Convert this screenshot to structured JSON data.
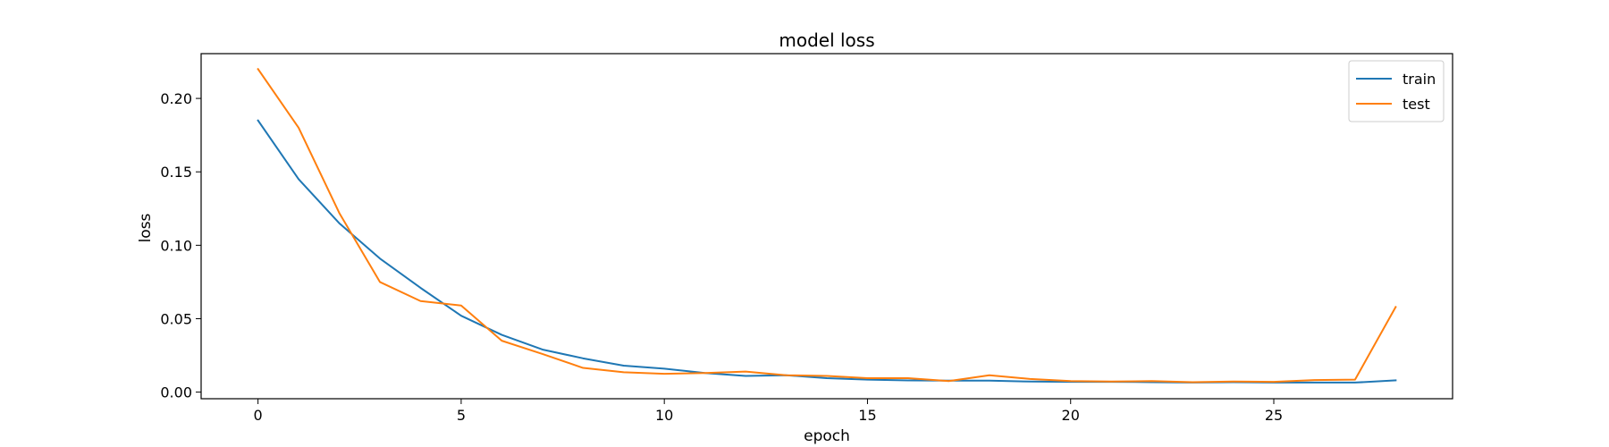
{
  "chart_data": {
    "type": "line",
    "title": "model loss",
    "xlabel": "epoch",
    "ylabel": "loss",
    "xlim": [
      -1.4,
      29.4
    ],
    "ylim": [
      -0.0045,
      0.2305
    ],
    "xticks": [
      0,
      5,
      10,
      15,
      20,
      25
    ],
    "yticks": [
      0.0,
      0.05,
      0.1,
      0.15,
      0.2
    ],
    "ytick_labels": [
      "0.00",
      "0.05",
      "0.10",
      "0.15",
      "0.20"
    ],
    "legend_position": "top-right",
    "x": [
      0,
      1,
      2,
      3,
      4,
      5,
      6,
      7,
      8,
      9,
      10,
      11,
      12,
      13,
      14,
      15,
      16,
      17,
      18,
      19,
      20,
      21,
      22,
      23,
      24,
      25,
      26,
      27,
      28
    ],
    "series": [
      {
        "name": "train",
        "color": "#1f77b4",
        "values": [
          0.185,
          0.145,
          0.115,
          0.091,
          0.071,
          0.052,
          0.039,
          0.029,
          0.023,
          0.018,
          0.016,
          0.013,
          0.011,
          0.0115,
          0.0095,
          0.0085,
          0.008,
          0.0078,
          0.0078,
          0.0072,
          0.007,
          0.007,
          0.0068,
          0.0065,
          0.0068,
          0.0065,
          0.0065,
          0.0065,
          0.008
        ]
      },
      {
        "name": "test",
        "color": "#ff7f0e",
        "values": [
          0.22,
          0.18,
          0.122,
          0.075,
          0.062,
          0.059,
          0.035,
          0.026,
          0.0165,
          0.0135,
          0.0125,
          0.013,
          0.014,
          0.0115,
          0.011,
          0.0095,
          0.0095,
          0.0075,
          0.0115,
          0.009,
          0.0075,
          0.0072,
          0.0075,
          0.0068,
          0.0072,
          0.007,
          0.0082,
          0.0085,
          0.058
        ]
      }
    ]
  }
}
